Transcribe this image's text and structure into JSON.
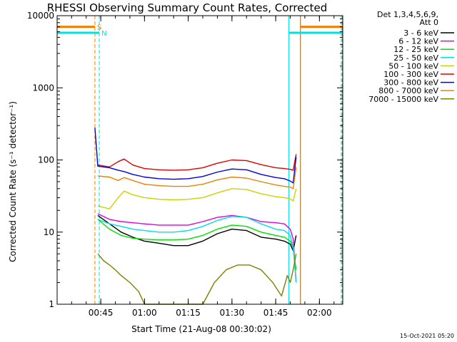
{
  "chart_data": {
    "type": "line",
    "title": "RHESSI Observing Summary Count Rates, Corrected",
    "xlabel": "Start Time (21-Aug-08 00:30:02)",
    "ylabel": "Corrected Count Rate (s⁻¹ detector⁻¹)",
    "y_scale": "log",
    "ylim": [
      1,
      10000
    ],
    "xlim": [
      "00:30:02",
      "02:08:00"
    ],
    "x_tick_labels": [
      "00:45",
      "01:00",
      "01:15",
      "01:30",
      "01:45",
      "02:00"
    ],
    "x_ticks": [
      "00:45",
      "01:00",
      "01:15",
      "01:30",
      "01:45",
      "02:00"
    ],
    "y_tick_labels": [
      "1",
      "10",
      "100",
      "1000",
      "10000"
    ],
    "y_ticks": [
      1,
      10,
      100,
      1000,
      10000
    ],
    "legend_header": [
      "Det 1,3,4,5,6,9,",
      "Att 0"
    ],
    "legend_placement": "right, outside plot",
    "series": [
      {
        "name": "3 - 6 keV",
        "color": "#000000",
        "x": [
          "00:44",
          "00:48",
          "00:52",
          "00:56",
          "01:00",
          "01:05",
          "01:10",
          "01:15",
          "01:20",
          "01:25",
          "01:30",
          "01:35",
          "01:40",
          "01:45",
          "01:48",
          "01:50",
          "01:51",
          "01:52"
        ],
        "y": [
          17,
          13,
          10,
          8.5,
          7.5,
          7,
          6.5,
          6.5,
          7.5,
          9.5,
          11,
          10.5,
          8.5,
          8,
          7.5,
          6.8,
          5.5,
          9
        ]
      },
      {
        "name": "6 - 12 keV",
        "color": "#e000e0",
        "x": [
          "00:44",
          "00:48",
          "00:52",
          "00:56",
          "01:00",
          "01:05",
          "01:10",
          "01:15",
          "01:20",
          "01:25",
          "01:30",
          "01:35",
          "01:40",
          "01:45",
          "01:48",
          "01:50",
          "01:51",
          "01:52"
        ],
        "y": [
          18,
          15,
          14,
          13.5,
          13,
          12.5,
          12.5,
          12.5,
          14,
          16,
          17,
          16,
          14,
          13.5,
          13,
          11,
          8,
          2
        ]
      },
      {
        "name": "12 - 25 keV",
        "color": "#00e000",
        "x": [
          "00:44",
          "00:48",
          "00:52",
          "00:56",
          "01:00",
          "01:05",
          "01:10",
          "01:15",
          "01:20",
          "01:25",
          "01:30",
          "01:35",
          "01:40",
          "01:45",
          "01:48",
          "01:50",
          "01:51",
          "01:52"
        ],
        "y": [
          15,
          11,
          9,
          8.2,
          8,
          7.8,
          7.8,
          8,
          9,
          11,
          12.5,
          12,
          10,
          9,
          8.5,
          7.5,
          6,
          3
        ]
      },
      {
        "name": "25 - 50 keV",
        "color": "#00e0e0",
        "x": [
          "00:44",
          "00:48",
          "00:52",
          "00:56",
          "01:00",
          "01:05",
          "01:10",
          "01:15",
          "01:20",
          "01:25",
          "01:30",
          "01:35",
          "01:40",
          "01:45",
          "01:48",
          "01:50",
          "01:51",
          "01:52"
        ],
        "y": [
          15,
          13,
          12,
          11,
          10.5,
          10,
          10,
          10.5,
          12,
          14.5,
          16.5,
          16,
          13,
          11,
          10.5,
          9,
          6,
          2
        ]
      },
      {
        "name": "50 - 100 keV",
        "color": "#d0d000",
        "x": [
          "00:44",
          "00:48",
          "00:51",
          "00:53",
          "00:56",
          "01:00",
          "01:05",
          "01:10",
          "01:15",
          "01:20",
          "01:25",
          "01:30",
          "01:35",
          "01:40",
          "01:45",
          "01:48",
          "01:50",
          "01:51",
          "01:52"
        ],
        "y": [
          23,
          21,
          30,
          37,
          33,
          30,
          28.5,
          28,
          28.5,
          30,
          35,
          40,
          39,
          34,
          31,
          30,
          29,
          27,
          40
        ]
      },
      {
        "name": "100 - 300 keV",
        "color": "#e00000",
        "x": [
          "00:44",
          "00:48",
          "00:51",
          "00:53",
          "00:56",
          "01:00",
          "01:05",
          "01:10",
          "01:15",
          "01:20",
          "01:25",
          "01:30",
          "01:35",
          "01:40",
          "01:45",
          "01:48",
          "01:50",
          "01:51",
          "01:52"
        ],
        "y": [
          85,
          80,
          95,
          103,
          85,
          76,
          73,
          72,
          73,
          78,
          90,
          100,
          98,
          86,
          78,
          76,
          74,
          72,
          120
        ]
      },
      {
        "name": "300 - 800 keV",
        "color": "#0000e0",
        "x": [
          "00:43",
          "00:44",
          "00:48",
          "00:51",
          "00:53",
          "00:56",
          "01:00",
          "01:05",
          "01:10",
          "01:15",
          "01:20",
          "01:25",
          "01:30",
          "01:35",
          "01:40",
          "01:45",
          "01:48",
          "01:50",
          "01:51",
          "01:52"
        ],
        "y": [
          280,
          82,
          78,
          72,
          69,
          63,
          58,
          55,
          54,
          55,
          59,
          68,
          75,
          73,
          63,
          57,
          55,
          51,
          48,
          110
        ]
      },
      {
        "name": "800 - 7000 keV",
        "color": "#f08000",
        "x": [
          "00:44",
          "00:48",
          "00:51",
          "00:53",
          "00:56",
          "01:00",
          "01:05",
          "01:10",
          "01:15",
          "01:20",
          "01:25",
          "01:30",
          "01:35",
          "01:40",
          "01:45",
          "01:48",
          "01:50",
          "01:51",
          "01:52"
        ],
        "y": [
          60,
          58,
          52,
          57,
          52,
          46,
          44,
          43,
          43,
          46,
          53,
          58,
          56,
          50,
          45,
          43,
          42,
          40,
          80
        ]
      },
      {
        "name": "7000 - 15000 keV",
        "color": "#808000",
        "x": [
          "00:44",
          "00:46",
          "00:48",
          "00:50",
          "00:52",
          "00:55",
          "00:58",
          "01:00",
          "01:10",
          "01:20",
          "01:24",
          "01:28",
          "01:32",
          "01:36",
          "01:40",
          "01:44",
          "01:47",
          "01:49",
          "01:50",
          "01:51",
          "01:52"
        ],
        "y": [
          5,
          4,
          3.5,
          3,
          2.5,
          2,
          1.5,
          1,
          1,
          1,
          2,
          3,
          3.5,
          3.5,
          3,
          2,
          1.3,
          2.5,
          2,
          3,
          5
        ]
      }
    ],
    "spans": [
      {
        "label": "S",
        "color": "#f08000",
        "start": "00:30:02",
        "end": "00:43:00",
        "y": 7000
      },
      {
        "label": "N",
        "color": "#00e0e0",
        "start": "00:30:02",
        "end": "00:44:30",
        "y": 5800
      },
      {
        "label": "",
        "color": "#00e0e0",
        "start": "01:49:30",
        "end": "02:08:00",
        "y": 5800
      },
      {
        "label": "",
        "color": "#f08000",
        "start": "01:53:30",
        "end": "02:08:00",
        "y": 7000
      }
    ],
    "vertical_markers": [
      {
        "time": "00:30:02",
        "color": "#00e0e0",
        "style": "solid"
      },
      {
        "time": "00:43:00",
        "color": "#f08000",
        "style": "dashed"
      },
      {
        "time": "00:44:30",
        "color": "#00e0e0",
        "style": "dashed"
      },
      {
        "time": "01:49:30",
        "color": "#00e0e0",
        "style": "solid"
      },
      {
        "time": "01:53:30",
        "color": "#a06000",
        "style": "solid"
      },
      {
        "time": "02:07:30",
        "color": "#00e0e0",
        "style": "dashed"
      },
      {
        "time": "02:07:50",
        "color": "#f08000",
        "style": "dashed"
      }
    ]
  },
  "footer": {
    "timestamp": "15-Oct-2021 05:20"
  }
}
